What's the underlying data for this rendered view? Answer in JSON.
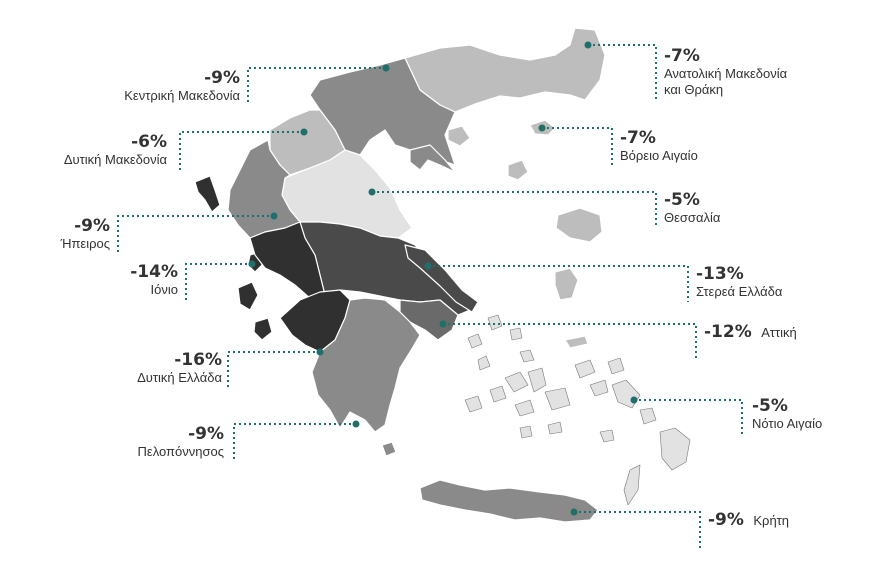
{
  "regions": [
    {
      "id": "anatoliki-makedonia-thraki",
      "percent": "-7%",
      "name_line1": "Ανατολική Μακεδονία",
      "name_line2": "και Θράκη",
      "color": "#bdbdbd"
    },
    {
      "id": "kentriki-makedonia",
      "percent": "-9%",
      "name": "Κεντρική Μακεδονία",
      "color": "#8a8a8a"
    },
    {
      "id": "dytiki-makedonia",
      "percent": "-6%",
      "name": "Δυτική Μακεδονία",
      "color": "#bdbdbd"
    },
    {
      "id": "voreio-aigaio",
      "percent": "-7%",
      "name": "Βόρειο Αιγαίο",
      "color": "#bdbdbd"
    },
    {
      "id": "thessalia",
      "percent": "-5%",
      "name": "Θεσσαλία",
      "color": "#e2e2e2"
    },
    {
      "id": "ipeiros",
      "percent": "-9%",
      "name": "Ήπειρος",
      "color": "#8a8a8a"
    },
    {
      "id": "ionio",
      "percent": "-14%",
      "name": "Ιόνιο",
      "color": "#3a3a3a"
    },
    {
      "id": "sterea-ellada",
      "percent": "-13%",
      "name": "Στερεά Ελλάδα",
      "color": "#4a4a4a"
    },
    {
      "id": "attiki",
      "percent": "-12%",
      "name": "Αττική",
      "color": "#6a6a6a"
    },
    {
      "id": "dytiki-ellada",
      "percent": "-16%",
      "name": "Δυτική Ελλάδα",
      "color": "#303030"
    },
    {
      "id": "notio-aigaio",
      "percent": "-5%",
      "name": "Νότιο Αιγαίο",
      "color": "#e2e2e2"
    },
    {
      "id": "peloponnisos",
      "percent": "-9%",
      "name": "Πελοπόννησος",
      "color": "#8a8a8a"
    },
    {
      "id": "kriti",
      "percent": "-9%",
      "name": "Κρήτη",
      "color": "#8a8a8a"
    }
  ],
  "colors": {
    "leader": "#1f6f6a",
    "border": "#ffffff",
    "text": "#333333"
  }
}
